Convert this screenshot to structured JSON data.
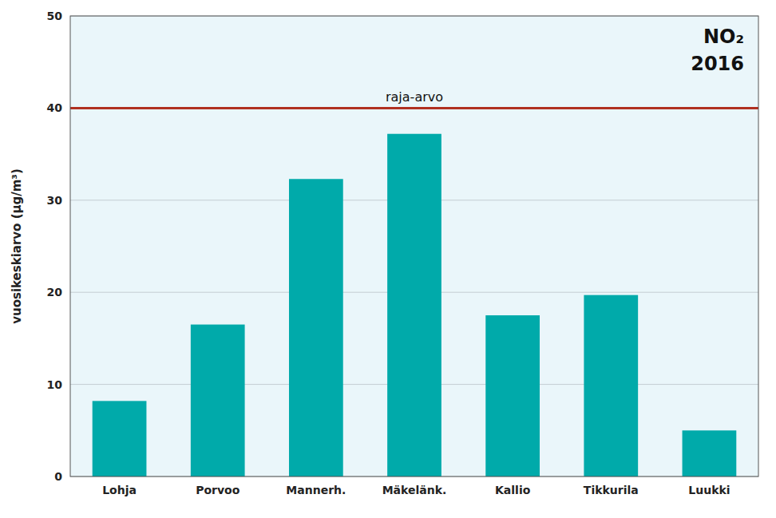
{
  "chart_data": {
    "type": "bar",
    "categories": [
      "Lohja",
      "Porvoo",
      "Mannerh.",
      "Mäkelänk.",
      "Kallio",
      "Tikkurila",
      "Luukki"
    ],
    "values": [
      8.2,
      16.5,
      32.3,
      37.2,
      17.5,
      19.7,
      5.0
    ],
    "color": "#00AAAA",
    "ylabel": "vuosikeskiarvo (μg/m³)",
    "ylim": [
      0,
      50
    ],
    "yticks": [
      0,
      10,
      20,
      30,
      40,
      50
    ],
    "grid": true,
    "annotations": [
      {
        "text": "raja-arvo",
        "y": 40,
        "color": "#B03020"
      },
      {
        "text": "NO₂"
      },
      {
        "text": "2016"
      }
    ]
  }
}
